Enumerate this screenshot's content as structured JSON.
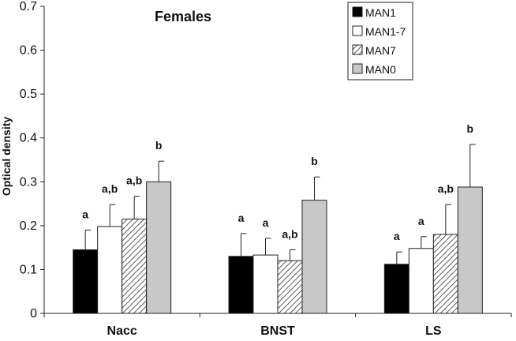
{
  "chart_data": {
    "type": "bar",
    "title": "Females",
    "xlabel": "",
    "ylabel": "Optical density",
    "ylim": [
      0,
      0.7
    ],
    "yticks": [
      "0",
      "0.1",
      "0.2",
      "0.3",
      "0.4",
      "0.5",
      "0.6",
      "0.7"
    ],
    "categories": [
      "Nacc",
      "BNST",
      "LS"
    ],
    "legend_position": "top-right",
    "series": [
      {
        "name": "MAN1",
        "fill": "solid",
        "color": "#000000",
        "values": [
          0.145,
          0.13,
          0.112
        ],
        "errors": [
          0.045,
          0.052,
          0.028
        ],
        "labels": [
          "a",
          "a",
          "a"
        ]
      },
      {
        "name": "MAN1-7",
        "fill": "solid",
        "color": "#ffffff",
        "values": [
          0.198,
          0.133,
          0.148
        ],
        "errors": [
          0.05,
          0.038,
          0.027
        ],
        "labels": [
          "a,b",
          "a",
          "a"
        ]
      },
      {
        "name": "MAN7",
        "fill": "hatched",
        "color": "#ffffff",
        "values": [
          0.215,
          0.12,
          0.18
        ],
        "errors": [
          0.052,
          0.025,
          0.068
        ],
        "labels": [
          "a,b",
          "a,b",
          "a,b"
        ]
      },
      {
        "name": "MAN0",
        "fill": "solid",
        "color": "#c8c8c8",
        "values": [
          0.3,
          0.258,
          0.288
        ],
        "errors": [
          0.047,
          0.053,
          0.097
        ],
        "labels": [
          "b",
          "b",
          "b"
        ]
      }
    ]
  }
}
